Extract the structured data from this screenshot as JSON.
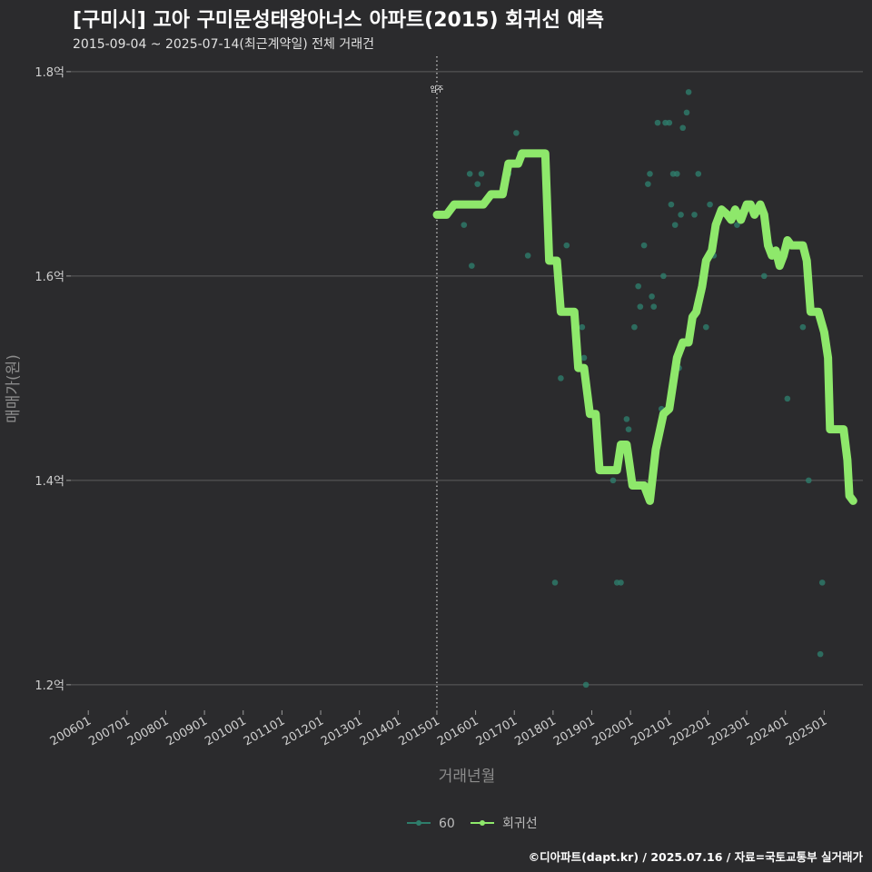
{
  "chart_data": {
    "type": "scatter",
    "title": "[구미시] 고아 구미문성태왕아너스 아파트(2015) 회귀선 예측",
    "subtitle": "2015-09-04 ~ 2025-07-14(최근계약일) 전체 거래건",
    "xlabel": "거래년월",
    "ylabel": "매매가(원)",
    "caption": "©디아파트(dapt.kr) / 2025.07.16 / 자료=국토교통부 실거래가",
    "x_ticks": [
      "200601",
      "200701",
      "200801",
      "200901",
      "201001",
      "201101",
      "201201",
      "201301",
      "201401",
      "201501",
      "201601",
      "201701",
      "201801",
      "201901",
      "202001",
      "202101",
      "202201",
      "202301",
      "202401",
      "202501"
    ],
    "x_range": [
      2005.55,
      2026.0
    ],
    "y_ticks": [
      {
        "value": 1.2,
        "label": "1.2억"
      },
      {
        "value": 1.4,
        "label": "1.4억"
      },
      {
        "value": 1.6,
        "label": "1.6억"
      },
      {
        "value": 1.8,
        "label": "1.8억"
      }
    ],
    "y_range": [
      1.175,
      1.815
    ],
    "vline": {
      "x": 2015.0,
      "label": "입주"
    },
    "colors": {
      "points": "#2e7d6b",
      "regression": "#8ee86b",
      "grid": "#5e5e5e",
      "vline": "#bdbdbd"
    },
    "legend": [
      {
        "name": "60",
        "color": "#2e7d6b"
      },
      {
        "name": "회귀선",
        "color": "#8ee86b"
      }
    ],
    "series": [
      {
        "name": "60",
        "points": [
          [
            2015.7,
            1.65
          ],
          [
            2015.85,
            1.7
          ],
          [
            2015.9,
            1.61
          ],
          [
            2016.05,
            1.69
          ],
          [
            2016.15,
            1.7
          ],
          [
            2016.6,
            1.68
          ],
          [
            2016.85,
            1.7
          ],
          [
            2017.05,
            1.74
          ],
          [
            2017.15,
            1.72
          ],
          [
            2017.35,
            1.62
          ],
          [
            2018.05,
            1.3
          ],
          [
            2018.2,
            1.5
          ],
          [
            2018.35,
            1.63
          ],
          [
            2018.75,
            1.55
          ],
          [
            2018.8,
            1.52
          ],
          [
            2018.85,
            1.2
          ],
          [
            2019.55,
            1.4
          ],
          [
            2019.65,
            1.3
          ],
          [
            2019.9,
            1.46
          ],
          [
            2019.95,
            1.45
          ],
          [
            2020.1,
            1.55
          ],
          [
            2020.2,
            1.59
          ],
          [
            2020.25,
            1.57
          ],
          [
            2020.35,
            1.63
          ],
          [
            2020.45,
            1.69
          ],
          [
            2020.5,
            1.7
          ],
          [
            2020.55,
            1.58
          ],
          [
            2020.6,
            1.57
          ],
          [
            2020.7,
            1.75
          ],
          [
            2020.8,
            1.47
          ],
          [
            2020.85,
            1.6
          ],
          [
            2020.9,
            1.75
          ],
          [
            2021.0,
            1.75
          ],
          [
            2021.05,
            1.67
          ],
          [
            2021.1,
            1.7
          ],
          [
            2021.15,
            1.65
          ],
          [
            2021.2,
            1.7
          ],
          [
            2021.25,
            1.51
          ],
          [
            2021.3,
            1.66
          ],
          [
            2021.35,
            1.745
          ],
          [
            2021.45,
            1.76
          ],
          [
            2021.5,
            1.78
          ],
          [
            2021.65,
            1.66
          ],
          [
            2021.75,
            1.7
          ],
          [
            2021.85,
            1.585
          ],
          [
            2021.95,
            1.55
          ],
          [
            2022.05,
            1.67
          ],
          [
            2022.15,
            1.62
          ],
          [
            2022.75,
            1.65
          ],
          [
            2023.45,
            1.6
          ],
          [
            2023.6,
            1.63
          ],
          [
            2024.05,
            1.48
          ],
          [
            2024.45,
            1.55
          ],
          [
            2024.6,
            1.4
          ],
          [
            2024.9,
            1.23
          ],
          [
            2024.95,
            1.3
          ],
          [
            2019.75,
            1.3
          ]
        ]
      },
      {
        "name": "회귀선",
        "points": [
          [
            2015.0,
            1.66
          ],
          [
            2015.25,
            1.66
          ],
          [
            2015.45,
            1.67
          ],
          [
            2015.9,
            1.67
          ],
          [
            2016.2,
            1.67
          ],
          [
            2016.4,
            1.68
          ],
          [
            2016.7,
            1.68
          ],
          [
            2016.85,
            1.71
          ],
          [
            2017.1,
            1.71
          ],
          [
            2017.2,
            1.72
          ],
          [
            2017.5,
            1.72
          ],
          [
            2017.8,
            1.72
          ],
          [
            2017.9,
            1.615
          ],
          [
            2018.1,
            1.615
          ],
          [
            2018.2,
            1.565
          ],
          [
            2018.55,
            1.565
          ],
          [
            2018.65,
            1.51
          ],
          [
            2018.8,
            1.51
          ],
          [
            2018.95,
            1.465
          ],
          [
            2019.1,
            1.465
          ],
          [
            2019.2,
            1.41
          ],
          [
            2019.5,
            1.41
          ],
          [
            2019.65,
            1.41
          ],
          [
            2019.75,
            1.435
          ],
          [
            2019.9,
            1.435
          ],
          [
            2020.05,
            1.395
          ],
          [
            2020.35,
            1.395
          ],
          [
            2020.5,
            1.38
          ],
          [
            2020.65,
            1.43
          ],
          [
            2020.85,
            1.465
          ],
          [
            2021.0,
            1.47
          ],
          [
            2021.2,
            1.52
          ],
          [
            2021.35,
            1.535
          ],
          [
            2021.5,
            1.535
          ],
          [
            2021.6,
            1.56
          ],
          [
            2021.7,
            1.565
          ],
          [
            2021.85,
            1.59
          ],
          [
            2021.95,
            1.615
          ],
          [
            2022.1,
            1.625
          ],
          [
            2022.2,
            1.65
          ],
          [
            2022.35,
            1.665
          ],
          [
            2022.5,
            1.66
          ],
          [
            2022.6,
            1.655
          ],
          [
            2022.7,
            1.665
          ],
          [
            2022.85,
            1.655
          ],
          [
            2023.0,
            1.67
          ],
          [
            2023.1,
            1.67
          ],
          [
            2023.2,
            1.66
          ],
          [
            2023.35,
            1.67
          ],
          [
            2023.45,
            1.66
          ],
          [
            2023.55,
            1.63
          ],
          [
            2023.65,
            1.62
          ],
          [
            2023.75,
            1.625
          ],
          [
            2023.85,
            1.61
          ],
          [
            2023.95,
            1.62
          ],
          [
            2024.05,
            1.635
          ],
          [
            2024.15,
            1.63
          ],
          [
            2024.3,
            1.63
          ],
          [
            2024.45,
            1.63
          ],
          [
            2024.55,
            1.615
          ],
          [
            2024.65,
            1.565
          ],
          [
            2024.85,
            1.565
          ],
          [
            2025.0,
            1.545
          ],
          [
            2025.1,
            1.52
          ],
          [
            2025.15,
            1.45
          ],
          [
            2025.3,
            1.45
          ],
          [
            2025.5,
            1.45
          ],
          [
            2025.6,
            1.42
          ],
          [
            2025.65,
            1.385
          ],
          [
            2025.75,
            1.38
          ]
        ]
      }
    ]
  }
}
